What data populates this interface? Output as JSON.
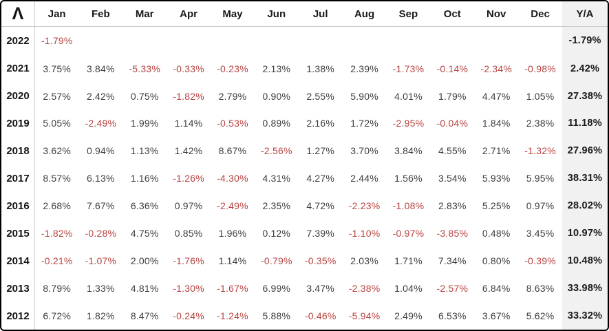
{
  "table": {
    "logo_glyph": "Λ",
    "month_columns": [
      "Jan",
      "Feb",
      "Mar",
      "Apr",
      "May",
      "Jun",
      "Jul",
      "Aug",
      "Sep",
      "Oct",
      "Nov",
      "Dec"
    ],
    "annual_column_label": "Y/A",
    "rows": [
      {
        "year": "2022",
        "values": [
          "-1.79%",
          "",
          "",
          "",
          "",
          "",
          "",
          "",
          "",
          "",
          "",
          ""
        ],
        "annual": "-1.79%"
      },
      {
        "year": "2021",
        "values": [
          "3.75%",
          "3.84%",
          "-5.33%",
          "-0.33%",
          "-0.23%",
          "2.13%",
          "1.38%",
          "2.39%",
          "-1.73%",
          "-0.14%",
          "-2.34%",
          "-0.98%"
        ],
        "annual": "2.42%"
      },
      {
        "year": "2020",
        "values": [
          "2.57%",
          "2.42%",
          "0.75%",
          "-1.82%",
          "2.79%",
          "0.90%",
          "2.55%",
          "5.90%",
          "4.01%",
          "1.79%",
          "4.47%",
          "1.05%"
        ],
        "annual": "27.38%"
      },
      {
        "year": "2019",
        "values": [
          "5.05%",
          "-2.49%",
          "1.99%",
          "1.14%",
          "-0.53%",
          "0.89%",
          "2.16%",
          "1.72%",
          "-2.95%",
          "-0.04%",
          "1.84%",
          "2.38%"
        ],
        "annual": "11.18%"
      },
      {
        "year": "2018",
        "values": [
          "3.62%",
          "0.94%",
          "1.13%",
          "1.42%",
          "8.67%",
          "-2.56%",
          "1.27%",
          "3.70%",
          "3.84%",
          "4.55%",
          "2.71%",
          "-1.32%"
        ],
        "annual": "27.96%"
      },
      {
        "year": "2017",
        "values": [
          "8.57%",
          "6.13%",
          "1.16%",
          "-1.26%",
          "-4.30%",
          "4.31%",
          "4.27%",
          "2.44%",
          "1.56%",
          "3.54%",
          "5.93%",
          "5.95%"
        ],
        "annual": "38.31%"
      },
      {
        "year": "2016",
        "values": [
          "2.68%",
          "7.67%",
          "6.36%",
          "0.97%",
          "-2.49%",
          "2.35%",
          "4.72%",
          "-2.23%",
          "-1.08%",
          "2.83%",
          "5.25%",
          "0.97%"
        ],
        "annual": "28.02%"
      },
      {
        "year": "2015",
        "values": [
          "-1.82%",
          "-0.28%",
          "4.75%",
          "0.85%",
          "1.96%",
          "0.12%",
          "7.39%",
          "-1.10%",
          "-0.97%",
          "-3.85%",
          "0.48%",
          "3.45%"
        ],
        "annual": "10.97%"
      },
      {
        "year": "2014",
        "values": [
          "-0.21%",
          "-1.07%",
          "2.00%",
          "-1.76%",
          "1.14%",
          "-0.79%",
          "-0.35%",
          "2.03%",
          "1.71%",
          "7.34%",
          "0.80%",
          "-0.39%"
        ],
        "annual": "10.48%"
      },
      {
        "year": "2013",
        "values": [
          "8.79%",
          "1.33%",
          "4.81%",
          "-1.30%",
          "-1.67%",
          "6.99%",
          "3.47%",
          "-2.38%",
          "1.04%",
          "-2.57%",
          "6.84%",
          "8.63%"
        ],
        "annual": "33.98%"
      },
      {
        "year": "2012",
        "values": [
          "6.72%",
          "1.82%",
          "8.47%",
          "-0.24%",
          "-1.24%",
          "5.88%",
          "-0.46%",
          "-5.94%",
          "2.49%",
          "6.53%",
          "3.67%",
          "5.62%"
        ],
        "annual": "33.32%"
      }
    ]
  },
  "colors": {
    "positive_text": "#3d3d3d",
    "negative_text": "#b8433f",
    "annual_text": "#1a1a1a",
    "annual_column_bg": "#f1f1f2",
    "grid_line": "#cccccc",
    "outer_border": "#000000"
  }
}
